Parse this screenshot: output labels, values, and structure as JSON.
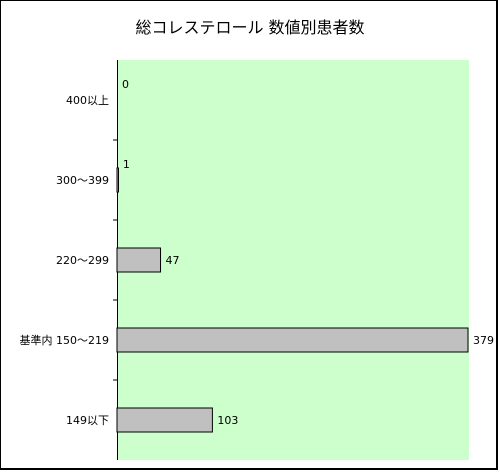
{
  "chart_data": {
    "type": "bar",
    "orientation": "horizontal",
    "title": "総コレステロール 数値別患者数",
    "categories": [
      "400以上",
      "300～399",
      "220～299",
      "基準内 150～219",
      "149以下"
    ],
    "values": [
      0,
      1,
      47,
      379,
      103
    ],
    "xlim": [
      0,
      379
    ],
    "grid": false,
    "legend": "none",
    "colors": {
      "plot_background": "#ccffcc",
      "bar_fill": "#c0c0c0",
      "bar_stroke": "#000000"
    }
  }
}
